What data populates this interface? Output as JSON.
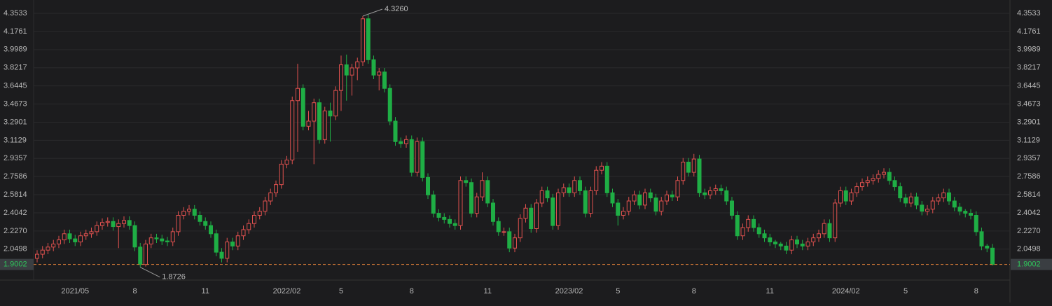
{
  "chart_data": {
    "type": "candlestick",
    "categories": [
      null,
      null,
      null,
      null,
      null,
      null,
      null,
      "2021/05",
      null,
      null,
      null,
      null,
      null,
      null,
      null,
      null,
      null,
      null,
      "8",
      null,
      null,
      null,
      null,
      null,
      null,
      null,
      null,
      null,
      null,
      null,
      null,
      "11",
      null,
      null,
      null,
      null,
      null,
      null,
      null,
      null,
      null,
      null,
      null,
      null,
      null,
      null,
      "2022/02",
      null,
      null,
      null,
      null,
      null,
      null,
      null,
      null,
      null,
      "5",
      null,
      null,
      null,
      null,
      null,
      null,
      null,
      null,
      null,
      null,
      null,
      null,
      "8",
      null,
      null,
      null,
      null,
      null,
      null,
      null,
      null,
      null,
      null,
      null,
      null,
      null,
      "11",
      null,
      null,
      null,
      null,
      null,
      null,
      null,
      null,
      null,
      null,
      null,
      null,
      null,
      null,
      "2023/02",
      null,
      null,
      null,
      null,
      null,
      null,
      null,
      null,
      "5",
      null,
      null,
      null,
      null,
      null,
      null,
      null,
      null,
      null,
      null,
      null,
      null,
      null,
      "8",
      null,
      null,
      null,
      null,
      null,
      null,
      null,
      null,
      null,
      null,
      null,
      null,
      null,
      "11",
      null,
      null,
      null,
      null,
      null,
      null,
      null,
      null,
      null,
      null,
      null,
      null,
      null,
      "2024/02",
      null,
      null,
      null,
      null,
      null,
      null,
      null,
      null,
      null,
      null,
      "5",
      null,
      null,
      null,
      null,
      null,
      null,
      null,
      null,
      null,
      null,
      null,
      null,
      "8",
      null,
      null,
      null
    ],
    "open": [
      1.96,
      2.0,
      2.04,
      2.07,
      2.1,
      2.14,
      2.2,
      2.15,
      2.12,
      2.18,
      2.2,
      2.22,
      2.28,
      2.31,
      2.32,
      2.27,
      2.3,
      2.33,
      2.28,
      2.07,
      1.9,
      2.1,
      2.16,
      2.15,
      2.13,
      2.12,
      2.22,
      2.38,
      2.42,
      2.44,
      2.38,
      2.32,
      2.28,
      2.2,
      2.02,
      1.96,
      2.12,
      2.08,
      2.18,
      2.24,
      2.3,
      2.38,
      2.42,
      2.52,
      2.6,
      2.68,
      2.88,
      2.92,
      3.5,
      3.62,
      3.25,
      3.3,
      3.48,
      3.12,
      3.4,
      3.35,
      3.6,
      3.85,
      3.75,
      3.82,
      3.88,
      4.3,
      3.9,
      3.75,
      3.78,
      3.62,
      3.3,
      3.1,
      3.08,
      3.12,
      2.8,
      3.1,
      2.75,
      2.58,
      2.4,
      2.36,
      2.34,
      2.3,
      2.28,
      2.72,
      2.7,
      2.4,
      2.56,
      2.72,
      2.5,
      2.32,
      2.22,
      2.22,
      2.06,
      2.16,
      2.35,
      2.45,
      2.25,
      2.5,
      2.62,
      2.55,
      2.28,
      2.6,
      2.65,
      2.6,
      2.72,
      2.62,
      2.4,
      2.62,
      2.82,
      2.86,
      2.6,
      2.5,
      2.38,
      2.42,
      2.52,
      2.58,
      2.48,
      2.6,
      2.55,
      2.42,
      2.52,
      2.58,
      2.56,
      2.72,
      2.9,
      2.8,
      2.93,
      2.6,
      2.58,
      2.62,
      2.64,
      2.62,
      2.52,
      2.38,
      2.18,
      2.26,
      2.34,
      2.26,
      2.2,
      2.16,
      2.12,
      2.1,
      2.08,
      2.04,
      2.14,
      2.1,
      2.08,
      2.12,
      2.16,
      2.2,
      2.3,
      2.16,
      2.5,
      2.62,
      2.52,
      2.6,
      2.66,
      2.7,
      2.72,
      2.74,
      2.78,
      2.8,
      2.72,
      2.66,
      2.55,
      2.5,
      2.56,
      2.48,
      2.42,
      2.44,
      2.52,
      2.55,
      2.6,
      2.52,
      2.46,
      2.42,
      2.4,
      2.38,
      2.22,
      2.08,
      2.06
    ],
    "high": [
      2.04,
      2.08,
      2.11,
      2.14,
      2.18,
      2.24,
      2.24,
      2.19,
      2.22,
      2.24,
      2.26,
      2.32,
      2.35,
      2.36,
      2.36,
      2.34,
      2.37,
      2.37,
      2.32,
      2.11,
      2.14,
      2.2,
      2.2,
      2.19,
      2.17,
      2.26,
      2.42,
      2.46,
      2.48,
      2.48,
      2.42,
      2.36,
      2.32,
      2.24,
      2.06,
      2.16,
      2.16,
      2.22,
      2.28,
      2.34,
      2.42,
      2.46,
      2.56,
      2.64,
      2.72,
      2.92,
      2.96,
      3.54,
      3.86,
      3.66,
      3.4,
      3.52,
      3.52,
      3.44,
      3.48,
      3.64,
      3.94,
      3.95,
      3.86,
      3.92,
      4.326,
      4.34,
      3.94,
      3.82,
      3.82,
      3.66,
      3.34,
      3.14,
      3.16,
      3.16,
      3.14,
      3.14,
      2.79,
      2.62,
      2.44,
      2.4,
      2.38,
      2.34,
      2.76,
      2.76,
      2.74,
      2.6,
      2.8,
      2.76,
      2.54,
      2.36,
      2.26,
      2.26,
      2.2,
      2.39,
      2.49,
      2.49,
      2.54,
      2.66,
      2.66,
      2.59,
      2.64,
      2.69,
      2.69,
      2.76,
      2.76,
      2.66,
      2.66,
      2.86,
      2.9,
      2.9,
      2.64,
      2.54,
      2.46,
      2.56,
      2.62,
      2.62,
      2.64,
      2.64,
      2.59,
      2.56,
      2.62,
      2.62,
      2.76,
      2.94,
      2.94,
      2.98,
      2.97,
      2.64,
      2.66,
      2.68,
      2.68,
      2.66,
      2.56,
      2.42,
      2.3,
      2.38,
      2.38,
      2.3,
      2.24,
      2.2,
      2.14,
      2.12,
      2.12,
      2.18,
      2.18,
      2.14,
      2.16,
      2.2,
      2.24,
      2.34,
      2.34,
      2.54,
      2.66,
      2.66,
      2.64,
      2.7,
      2.74,
      2.76,
      2.78,
      2.82,
      2.84,
      2.84,
      2.76,
      2.7,
      2.59,
      2.6,
      2.6,
      2.52,
      2.48,
      2.56,
      2.59,
      2.64,
      2.64,
      2.56,
      2.5,
      2.44,
      2.44,
      2.42,
      2.26,
      2.1,
      2.1
    ],
    "low": [
      1.92,
      1.96,
      2.0,
      2.03,
      2.06,
      2.1,
      2.11,
      2.08,
      2.08,
      2.14,
      2.16,
      2.18,
      2.24,
      2.27,
      2.23,
      2.06,
      2.26,
      2.24,
      2.03,
      1.8726,
      1.88,
      2.06,
      2.11,
      2.09,
      2.08,
      2.08,
      2.18,
      2.34,
      2.38,
      2.34,
      2.28,
      2.24,
      2.16,
      1.98,
      1.92,
      1.92,
      2.04,
      2.04,
      2.14,
      2.2,
      2.26,
      2.34,
      2.38,
      2.48,
      2.56,
      2.64,
      2.84,
      2.88,
      3.0,
      3.21,
      3.21,
      2.88,
      3.08,
      3.08,
      3.1,
      3.31,
      3.4,
      3.5,
      3.55,
      3.7,
      3.84,
      3.86,
      3.71,
      3.6,
      3.58,
      3.26,
      3.06,
      3.04,
      3.04,
      2.76,
      2.76,
      2.71,
      2.54,
      2.36,
      2.32,
      2.3,
      2.26,
      2.24,
      2.24,
      2.66,
      2.36,
      2.36,
      2.52,
      2.46,
      2.28,
      2.18,
      2.18,
      2.02,
      2.02,
      2.12,
      2.31,
      2.21,
      2.21,
      2.46,
      2.51,
      2.24,
      2.24,
      2.56,
      2.56,
      2.56,
      2.58,
      2.36,
      2.36,
      2.58,
      2.78,
      2.56,
      2.46,
      2.28,
      2.34,
      2.38,
      2.48,
      2.44,
      2.44,
      2.51,
      2.38,
      2.38,
      2.48,
      2.52,
      2.52,
      2.68,
      2.76,
      2.76,
      2.56,
      2.54,
      2.54,
      2.58,
      2.58,
      2.48,
      2.34,
      2.14,
      2.14,
      2.22,
      2.22,
      2.16,
      2.12,
      2.08,
      2.06,
      2.04,
      2.0,
      2.0,
      2.06,
      2.04,
      2.04,
      2.08,
      2.12,
      2.16,
      2.12,
      2.12,
      2.46,
      2.48,
      2.48,
      2.56,
      2.62,
      2.66,
      2.68,
      2.7,
      2.74,
      2.68,
      2.62,
      2.51,
      2.46,
      2.46,
      2.44,
      2.38,
      2.38,
      2.4,
      2.48,
      2.51,
      2.48,
      2.42,
      2.38,
      2.36,
      2.34,
      2.18,
      2.04,
      2.02,
      1.89
    ],
    "close": [
      2.0,
      2.04,
      2.07,
      2.1,
      2.14,
      2.2,
      2.15,
      2.12,
      2.18,
      2.2,
      2.22,
      2.28,
      2.31,
      2.32,
      2.27,
      2.3,
      2.33,
      2.28,
      2.07,
      1.9,
      2.1,
      2.16,
      2.15,
      2.13,
      2.12,
      2.22,
      2.38,
      2.42,
      2.44,
      2.38,
      2.32,
      2.28,
      2.2,
      2.02,
      1.96,
      2.12,
      2.08,
      2.18,
      2.24,
      2.3,
      2.38,
      2.42,
      2.52,
      2.6,
      2.68,
      2.88,
      2.92,
      3.5,
      3.62,
      3.25,
      3.3,
      3.48,
      3.12,
      3.4,
      3.35,
      3.6,
      3.85,
      3.75,
      3.82,
      3.88,
      4.3,
      3.9,
      3.75,
      3.78,
      3.62,
      3.3,
      3.1,
      3.08,
      3.12,
      2.8,
      3.1,
      2.75,
      2.58,
      2.4,
      2.36,
      2.34,
      2.3,
      2.28,
      2.72,
      2.7,
      2.4,
      2.56,
      2.72,
      2.5,
      2.32,
      2.22,
      2.22,
      2.06,
      2.16,
      2.35,
      2.45,
      2.25,
      2.5,
      2.62,
      2.55,
      2.28,
      2.6,
      2.65,
      2.6,
      2.72,
      2.62,
      2.4,
      2.62,
      2.82,
      2.86,
      2.6,
      2.5,
      2.38,
      2.42,
      2.52,
      2.58,
      2.48,
      2.6,
      2.55,
      2.42,
      2.52,
      2.58,
      2.56,
      2.72,
      2.9,
      2.8,
      2.93,
      2.6,
      2.58,
      2.62,
      2.64,
      2.62,
      2.52,
      2.38,
      2.18,
      2.26,
      2.34,
      2.26,
      2.2,
      2.16,
      2.12,
      2.1,
      2.08,
      2.04,
      2.14,
      2.1,
      2.08,
      2.12,
      2.16,
      2.2,
      2.3,
      2.16,
      2.5,
      2.62,
      2.52,
      2.6,
      2.66,
      2.7,
      2.72,
      2.74,
      2.78,
      2.8,
      2.72,
      2.66,
      2.55,
      2.5,
      2.56,
      2.48,
      2.42,
      2.44,
      2.52,
      2.55,
      2.6,
      2.52,
      2.46,
      2.42,
      2.4,
      2.38,
      2.22,
      2.08,
      2.06,
      1.9002
    ],
    "up_color": "#e0514f",
    "down_color": "#1fae45",
    "ylim": [
      1.7473,
      4.4833
    ],
    "yticks": [
      2.0498,
      {
        "value": 2.227,
        "label": "2.2270"
      },
      2.4042,
      2.5814,
      2.7586,
      2.9357,
      3.1129,
      3.2901,
      3.4673,
      3.6445,
      3.8217,
      3.9989,
      4.1761,
      4.3533
    ],
    "grid": true,
    "annotations": [
      {
        "label": "4.3260",
        "value": 4.326
      },
      {
        "label": "1.8726",
        "value": 1.8726
      }
    ],
    "last_price": 1.9002,
    "last_price_color": "#e8833a"
  }
}
